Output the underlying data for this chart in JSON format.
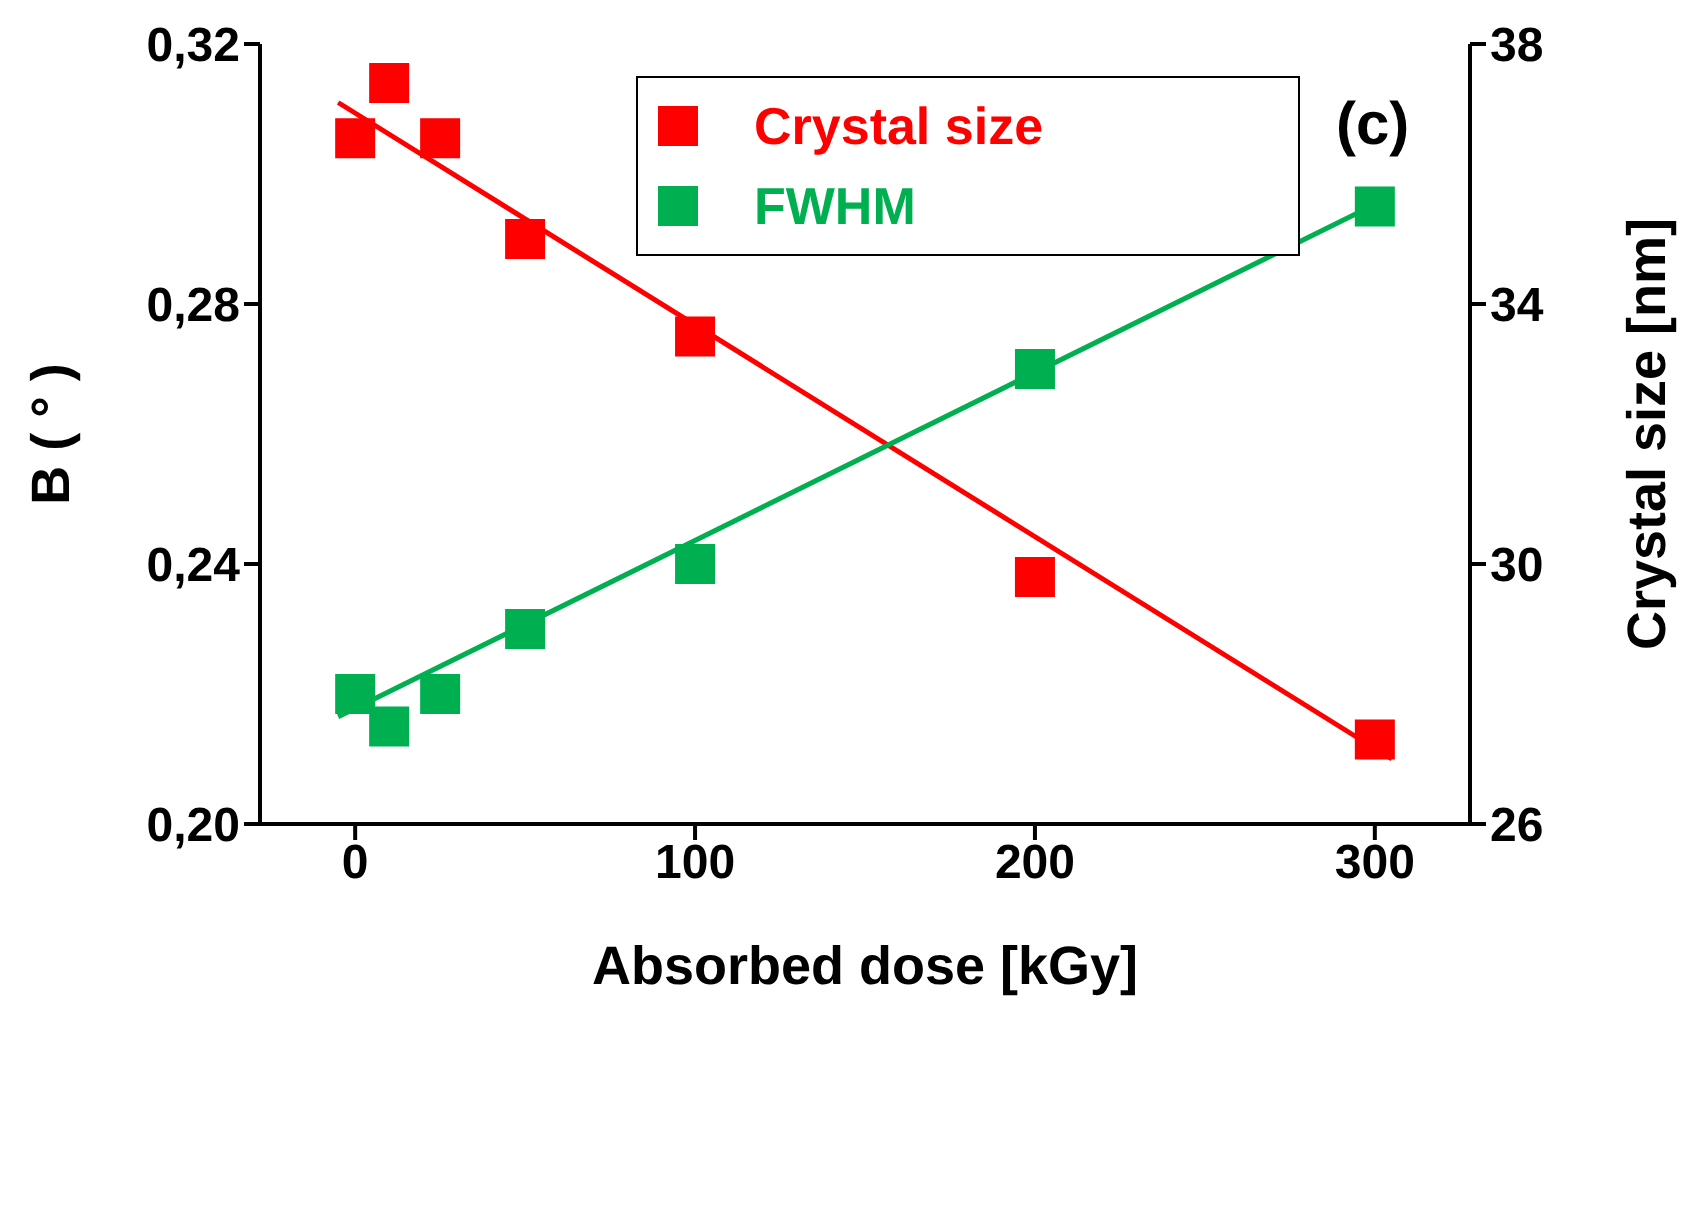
{
  "chart_data": {
    "type": "scatter",
    "xlabel": "Absorbed dose [kGy]",
    "ylabel": "B ( ° )",
    "y2label": "Crystal size [nm]",
    "annotations": [
      "(c)"
    ],
    "marker": "square",
    "legend": "top right",
    "grid": false,
    "xlim": [
      -28,
      328
    ],
    "xticks": [
      0,
      100,
      200,
      300
    ],
    "ylim": [
      0.2,
      0.32
    ],
    "yticks": [
      {
        "value": 0.2,
        "label": "0,20"
      },
      {
        "value": 0.24,
        "label": "0,24"
      },
      {
        "value": 0.28,
        "label": "0,28"
      },
      {
        "value": 0.32,
        "label": "0,32"
      }
    ],
    "y2lim": [
      26,
      38
    ],
    "y2ticks": [
      26,
      30,
      34,
      38
    ],
    "series": [
      {
        "name": "Crystal size",
        "color": "#ff0000",
        "axis": "y2",
        "x": [
          0,
          10,
          25,
          50,
          100,
          200,
          300
        ],
        "values": [
          36.55,
          37.4,
          36.55,
          35.0,
          33.5,
          29.8,
          27.3
        ]
      },
      {
        "name": "FWHM",
        "color": "#00b050",
        "x": [
          0,
          10,
          25,
          50,
          100,
          200,
          300
        ],
        "values": [
          0.22,
          0.215,
          0.22,
          0.23,
          0.24,
          0.27,
          0.295
        ]
      },
      {
        "type": "line",
        "marker": "none",
        "color": "#ff0000",
        "axis": "y2",
        "x": [
          -5,
          305
        ],
        "values": [
          37.1,
          27.0
        ]
      },
      {
        "type": "line",
        "marker": "none",
        "color": "#00b050",
        "x": [
          -5,
          300
        ],
        "values": [
          0.2165,
          0.2953
        ]
      }
    ]
  }
}
